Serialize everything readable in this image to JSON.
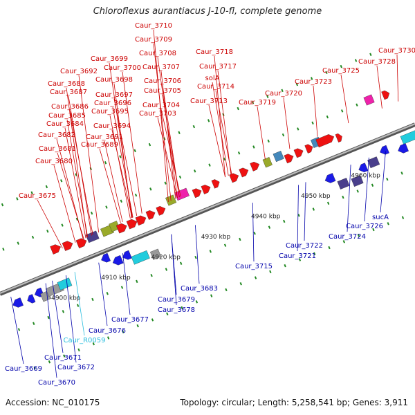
{
  "title": "Chloroflexus aurantiacus J-10-fl, complete genome",
  "accession_label": "Accession:",
  "accession": "NC_010175",
  "topology_label": "Topology: circular; Length: 5,258,541 bp; Genes: 3,911",
  "colors": {
    "red": "#ee1111",
    "blue": "#1a1ae6",
    "cyan": "#22ccdd",
    "navy": "#4a3f8c",
    "olive": "#9aaa2a",
    "magenta": "#ee22aa",
    "steel": "#4488bb",
    "gray": "#999999",
    "label_red": "#cc0000",
    "label_blue": "#0000aa",
    "label_cyan": "#22bbdd",
    "tick": "#228822"
  },
  "ruler_labels": [
    "4900 kbp",
    "4910 kbp",
    "4920 kbp",
    "4930 kbp",
    "4940 kbp",
    "4950 kbp",
    "4960 kbp"
  ],
  "top_labels": [
    "Caur_3710",
    "Caur_3709",
    "Caur_3708",
    "Caur_3718",
    "Caur_3730",
    "Caur_3699",
    "Caur_3707",
    "Caur_3717",
    "Caur_3728",
    "Caur_3692",
    "Caur_3700",
    "Caur_3725",
    "Caur_3698",
    "Caur_3706",
    "solA",
    "Caur_3688",
    "Caur_3705",
    "Caur_3714",
    "Caur_3723",
    "Caur_3687",
    "Caur_3697",
    "Caur_3720",
    "Caur_3696",
    "Caur_3713",
    "Caur_3719",
    "Caur_3686",
    "Caur_3704",
    "Caur_3685",
    "Caur_3695",
    "Caur_3703",
    "Caur_3684",
    "Caur_3694",
    "Caur_3682",
    "Caur_3691",
    "Caur_3689",
    "Caur_3681",
    "Caur_3680",
    "Caur_3675"
  ],
  "bottom_labels": [
    "Caur_3683",
    "Caur_3679",
    "Caur_3678",
    "Caur_3677",
    "Caur_3676",
    "Caur_R0059",
    "Caur_3671",
    "Caur_3672",
    "Caur_3669",
    "Caur_3670",
    "Caur_3715",
    "Caur_3721",
    "Caur_3722",
    "Caur_3724",
    "Caur_3726",
    "sucA"
  ]
}
